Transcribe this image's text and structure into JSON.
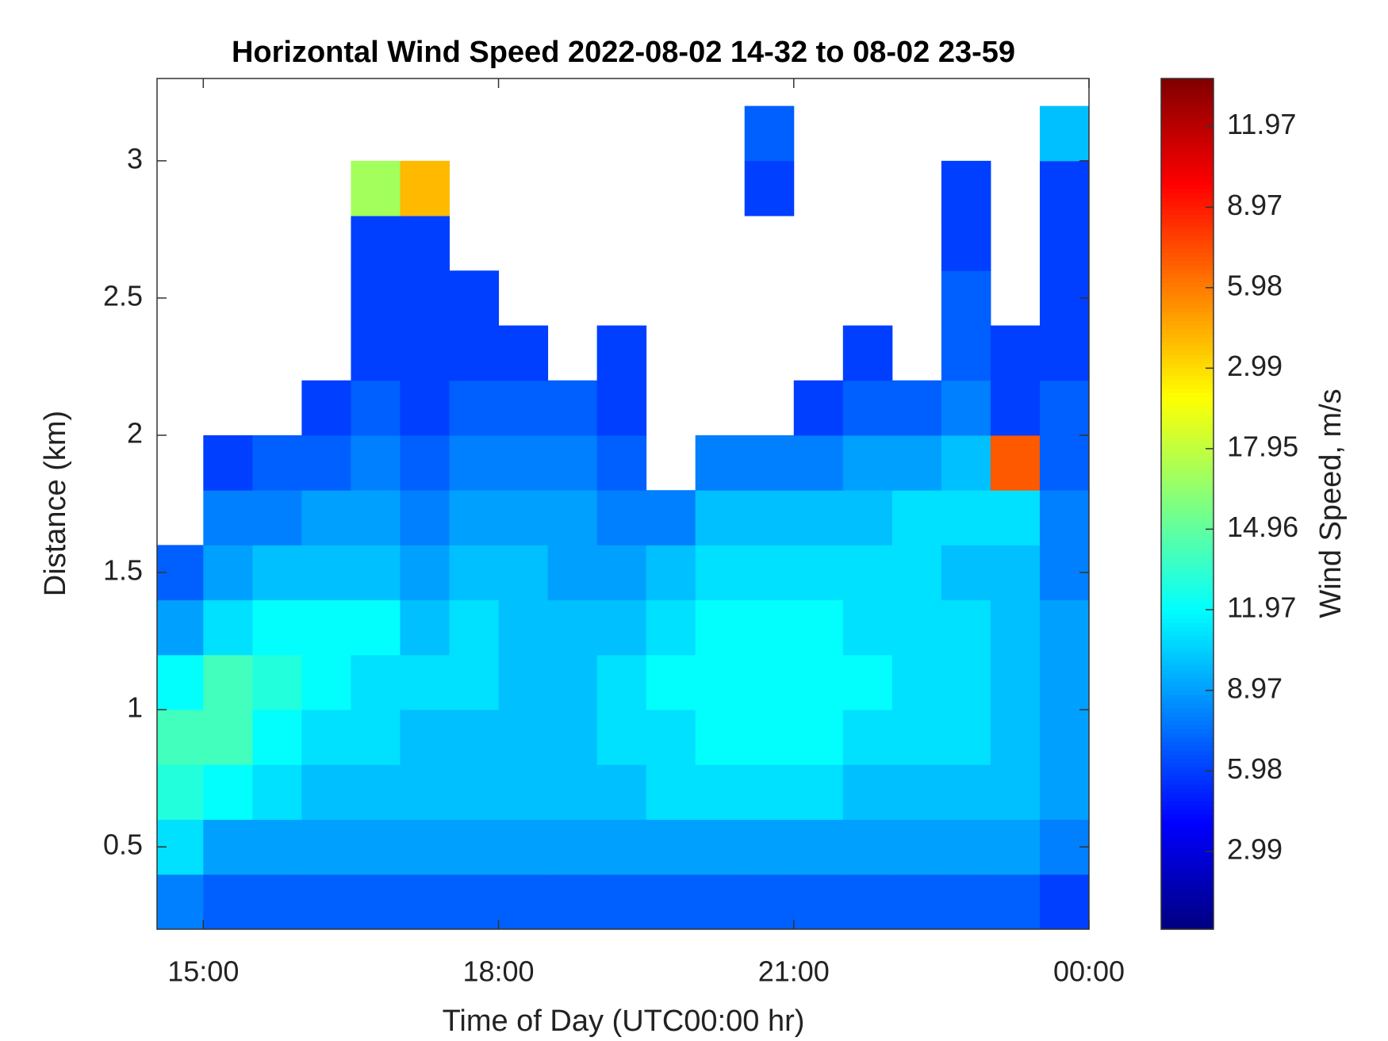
{
  "chart_data": {
    "type": "heatmap",
    "title": "Horizontal Wind Speed 2022-08-02 14-32 to 08-02 23-59",
    "x_label": "Time of Day (UTC00:00 hr)",
    "y_label": "Distance (km)",
    "colorbar_label": "Wind Speed, m/s",
    "colormap": "jet",
    "xlim": [
      14.53,
      24.0
    ],
    "xticks": [
      {
        "value": 15,
        "label": "15:00"
      },
      {
        "value": 18,
        "label": "18:00"
      },
      {
        "value": 21,
        "label": "21:00"
      },
      {
        "value": 24,
        "label": "00:00"
      }
    ],
    "ylim": [
      0.2,
      3.3
    ],
    "yticks": [
      0.5,
      1,
      1.5,
      2,
      2.5,
      3
    ],
    "clim": [
      0.1,
      31.7
    ],
    "cticks": [
      2.99,
      5.98,
      8.97,
      11.97,
      14.96,
      17.95,
      {
        "value": 20.94,
        "label": "2.99"
      },
      {
        "value": 23.93,
        "label": "5.98"
      },
      {
        "value": 26.92,
        "label": "8.97"
      },
      {
        "value": 29.92,
        "label": "11.97"
      }
    ],
    "x": [
      14.75,
      15.25,
      15.75,
      16.25,
      16.75,
      17.25,
      17.75,
      18.25,
      18.75,
      19.25,
      19.75,
      20.25,
      20.75,
      21.25,
      21.75,
      22.25,
      22.75,
      23.25,
      23.75
    ],
    "y": [
      0.3,
      0.5,
      0.7,
      0.9,
      1.1,
      1.3,
      1.5,
      1.7,
      1.9,
      2.1,
      2.3,
      2.5,
      2.7,
      2.9,
      3.1
    ],
    "z": [
      [
        8,
        7,
        7,
        7,
        7,
        7,
        7,
        7,
        7,
        7,
        7,
        7,
        7,
        7,
        7,
        7,
        7,
        7,
        6
      ],
      [
        11,
        9,
        9,
        9,
        9,
        9,
        9,
        9,
        9,
        9,
        9,
        9,
        9,
        9,
        9,
        9,
        9,
        9,
        8
      ],
      [
        13,
        12,
        11,
        10,
        10,
        10,
        10,
        10,
        10,
        10,
        11,
        11,
        11,
        11,
        10,
        10,
        10,
        10,
        9
      ],
      [
        14,
        14,
        12,
        11,
        11,
        10,
        10,
        10,
        10,
        11,
        11,
        12,
        12,
        12,
        11,
        11,
        11,
        10,
        9
      ],
      [
        12,
        14,
        13,
        12,
        11,
        11,
        11,
        10,
        10,
        11,
        12,
        12,
        12,
        12,
        12,
        11,
        11,
        10,
        9
      ],
      [
        9,
        11,
        12,
        12,
        12,
        10,
        11,
        10,
        10,
        10,
        11,
        12,
        12,
        12,
        11,
        11,
        11,
        10,
        9
      ],
      [
        7,
        9,
        10,
        10,
        10,
        9,
        10,
        10,
        9,
        9,
        10,
        11,
        11,
        11,
        11,
        11,
        10,
        10,
        8
      ],
      [
        null,
        8,
        8,
        9,
        9,
        8,
        9,
        9,
        9,
        8,
        8,
        10,
        10,
        10,
        10,
        11,
        11,
        11,
        8
      ],
      [
        null,
        6,
        7,
        7,
        8,
        7,
        8,
        8,
        8,
        7,
        null,
        8,
        8,
        8,
        9,
        9,
        10,
        25,
        7
      ],
      [
        null,
        null,
        null,
        6,
        7,
        6,
        7,
        7,
        7,
        6,
        null,
        null,
        null,
        6,
        7,
        7,
        8,
        6,
        7
      ],
      [
        null,
        null,
        null,
        null,
        6,
        6,
        6,
        6,
        null,
        6,
        null,
        null,
        null,
        null,
        6,
        null,
        7,
        6,
        6
      ],
      [
        null,
        null,
        null,
        null,
        6,
        6,
        6,
        null,
        null,
        null,
        null,
        null,
        null,
        null,
        null,
        null,
        7,
        null,
        6
      ],
      [
        null,
        null,
        null,
        null,
        6,
        6,
        null,
        null,
        null,
        null,
        null,
        null,
        null,
        null,
        null,
        null,
        6,
        null,
        6
      ],
      [
        null,
        null,
        null,
        null,
        17,
        22,
        null,
        null,
        null,
        null,
        null,
        null,
        6,
        null,
        null,
        null,
        6,
        null,
        6
      ],
      [
        null,
        null,
        null,
        null,
        null,
        null,
        null,
        null,
        null,
        null,
        null,
        null,
        7,
        null,
        null,
        null,
        null,
        null,
        10
      ]
    ]
  }
}
